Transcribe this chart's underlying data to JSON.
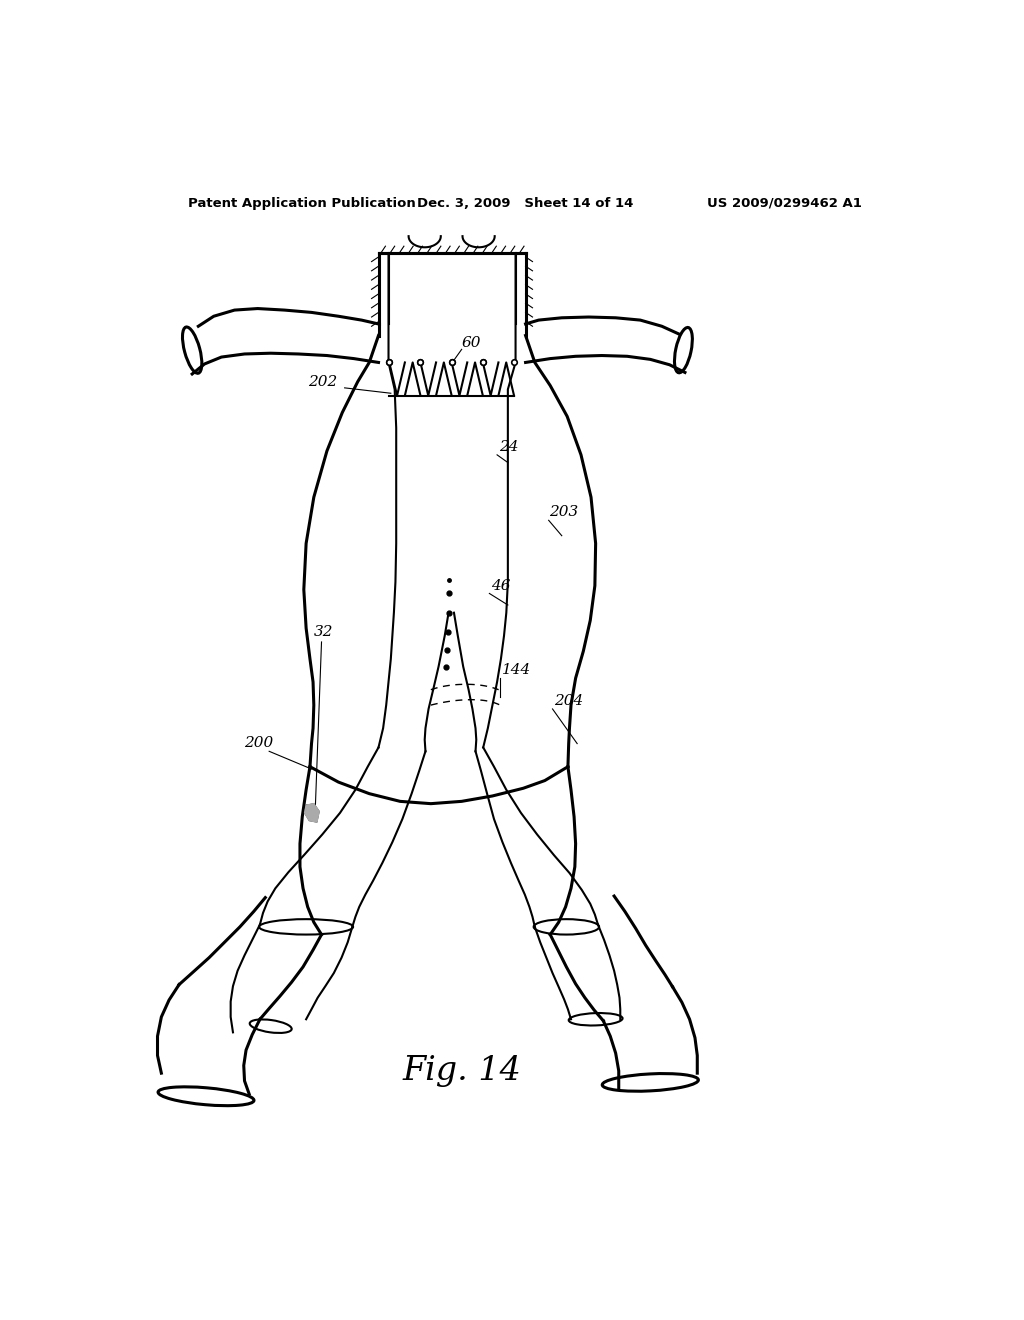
{
  "header_left": "Patent Application Publication",
  "header_middle": "Dec. 3, 2009   Sheet 14 of 14",
  "header_right": "US 2009/0299462 A1",
  "figure_label": "Fig. 14",
  "background_color": "#ffffff",
  "line_color": "#000000"
}
